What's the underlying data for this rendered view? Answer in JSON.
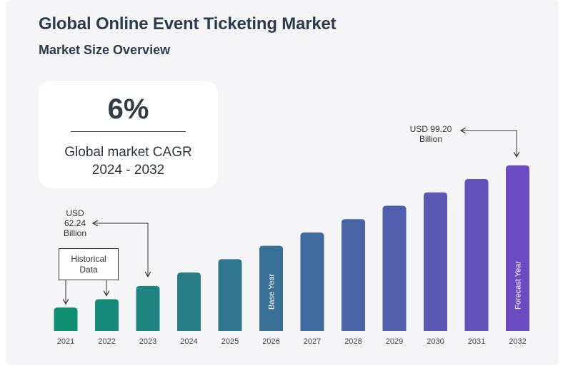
{
  "header": {
    "title": "Global Online Event Ticketing Market",
    "subtitle": "Market Size Overview"
  },
  "cagr": {
    "value": "6%",
    "label_line1": "Global market CAGR",
    "label_line2": "2024 - 2032"
  },
  "annotations": {
    "historical_line1": "Historical",
    "historical_line2": "Data",
    "start_value_line1": "USD",
    "start_value_line2": "62.24",
    "start_value_line3": "Billion",
    "end_value_line1": "USD 99.20",
    "end_value_line2": "Billion"
  },
  "chart_data": {
    "type": "bar",
    "title": "Global Online Event Ticketing Market",
    "subtitle": "Market Size Overview",
    "xlabel": "",
    "ylabel": "",
    "categories": [
      "2021",
      "2022",
      "2023",
      "2024",
      "2025",
      "2026",
      "2027",
      "2028",
      "2029",
      "2030",
      "2031",
      "2032"
    ],
    "values": [
      14,
      19,
      27,
      35,
      43,
      51,
      59,
      67,
      75,
      83,
      91,
      99.2
    ],
    "ylim": [
      0,
      100
    ],
    "grid": false,
    "bar_labels": {
      "2026": "Base Year",
      "2032": "Forecast Year"
    },
    "colors": {
      "start": "#0e8f72",
      "end": "#6a4bc0"
    }
  }
}
